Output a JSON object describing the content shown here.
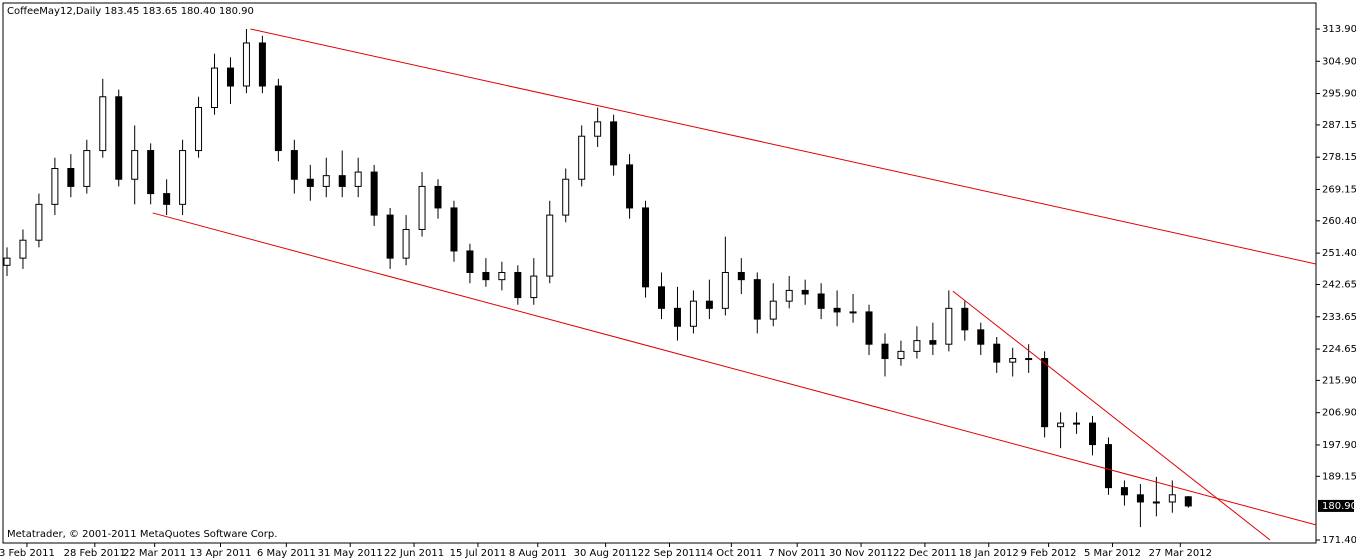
{
  "chart_data": {
    "type": "candlestick",
    "title": "CoffeeMay12,Daily  183.45 183.65 180.40 180.90",
    "footer": "Metatrader, © 2001-2011 MetaQuotes Software Corp.",
    "x": [
      1,
      5,
      9,
      13,
      17,
      21,
      25,
      29,
      33,
      37,
      41,
      45,
      49,
      53,
      57,
      61,
      65,
      69,
      73,
      77,
      81,
      85,
      89,
      93,
      97,
      101,
      105,
      109,
      113,
      117,
      121,
      125,
      129,
      133,
      137,
      141,
      145,
      149,
      153,
      157,
      161,
      165,
      169,
      173,
      177,
      181,
      185,
      189,
      193,
      197,
      201,
      205,
      209,
      213,
      217,
      221,
      225,
      229,
      233,
      237,
      241,
      245,
      249,
      253,
      257,
      261,
      265,
      269,
      273,
      277,
      281,
      285,
      289,
      293,
      297
    ],
    "open": [
      248,
      250,
      255,
      265,
      275,
      270,
      280,
      295,
      272,
      280,
      268,
      265,
      280,
      292,
      303,
      298,
      310,
      298,
      280,
      272,
      270,
      273,
      270,
      274,
      262,
      250,
      258,
      270,
      264,
      252,
      246,
      244,
      246,
      239,
      245,
      262,
      272,
      284,
      288,
      276,
      264,
      242,
      236,
      231,
      238,
      236,
      246,
      244,
      233,
      238,
      241,
      240,
      236,
      235,
      235,
      226,
      222,
      224,
      227,
      226,
      236,
      230,
      226,
      221,
      222,
      222,
      203,
      204,
      204,
      198,
      186,
      184,
      182,
      182,
      183.45
    ],
    "high": [
      253,
      258,
      268,
      278,
      279,
      283,
      300,
      297,
      287,
      282,
      272,
      283,
      295,
      307,
      306,
      313.9,
      312,
      300,
      283,
      276,
      278,
      280,
      278,
      276,
      264,
      262,
      274,
      272,
      266,
      254,
      250,
      249,
      248,
      250,
      266,
      275,
      287,
      292,
      290,
      279,
      266,
      246,
      242,
      241,
      244,
      256,
      250,
      246,
      243,
      245,
      244,
      243,
      241,
      240,
      237,
      229,
      227,
      231,
      232,
      241,
      238,
      232,
      228,
      225,
      226,
      224,
      207,
      207,
      206,
      200,
      188,
      187,
      189,
      188,
      183.65
    ],
    "low": [
      245,
      247,
      253,
      262,
      267,
      268,
      278,
      270,
      265,
      265,
      262,
      262,
      278,
      290,
      293,
      296,
      296,
      277,
      268,
      266,
      267,
      267,
      267,
      259,
      247,
      248,
      256,
      261,
      249,
      243,
      242,
      241,
      237,
      237,
      243,
      260,
      270,
      281,
      273,
      261,
      239,
      233,
      227,
      229,
      233,
      234,
      240,
      229,
      231,
      236,
      237,
      233,
      231,
      232,
      223,
      217,
      220,
      222,
      223,
      224,
      227,
      223,
      218,
      217,
      218,
      200,
      197,
      201,
      195,
      184,
      181,
      175,
      178,
      179,
      180.4
    ],
    "close": [
      250,
      255,
      265,
      275,
      270,
      280,
      295,
      272,
      280,
      268,
      265,
      280,
      292,
      303,
      298,
      310,
      298,
      280,
      272,
      270,
      273,
      270,
      274,
      262,
      250,
      258,
      270,
      264,
      252,
      246,
      244,
      246,
      239,
      245,
      262,
      272,
      284,
      288,
      276,
      264,
      242,
      236,
      231,
      238,
      236,
      246,
      244,
      233,
      238,
      241,
      240,
      236,
      235,
      235,
      226,
      222,
      224,
      227,
      226,
      236,
      230,
      226,
      221,
      222,
      222,
      203,
      204,
      204,
      198,
      186,
      184,
      182,
      182,
      184,
      180.9
    ],
    "up_color": "#ffffff",
    "down_color": "#000000",
    "trendlines": [
      {
        "x": [
          62,
          329
        ],
        "y": [
          313.9,
          248.35
        ],
        "color": "#e00000"
      },
      {
        "x": [
          37.5,
          329
        ],
        "y": [
          262.6,
          175.6
        ],
        "color": "#e00000"
      },
      {
        "x": [
          238,
          317.5
        ],
        "y": [
          240.8,
          171.4
        ],
        "color": "#e00000"
      }
    ],
    "last_price": {
      "value": 180.9,
      "label": "180.90"
    },
    "xlim": [
      0,
      329
    ],
    "ylim": [
      170.56,
      321.15
    ],
    "xticks": [
      {
        "value": 6,
        "label": "3 Feb 2011"
      },
      {
        "value": 23,
        "label": "28 Feb 2011"
      },
      {
        "value": 38,
        "label": "22 Mar 2011"
      },
      {
        "value": 54.5,
        "label": "13 Apr 2011"
      },
      {
        "value": 71,
        "label": "6 May 2011"
      },
      {
        "value": 87,
        "label": "31 May 2011"
      },
      {
        "value": 103,
        "label": "22 Jun 2011"
      },
      {
        "value": 119,
        "label": "15 Jul 2011"
      },
      {
        "value": 134,
        "label": "8 Aug 2011"
      },
      {
        "value": 151,
        "label": "30 Aug 2011"
      },
      {
        "value": 167,
        "label": "22 Sep 2011"
      },
      {
        "value": 182.5,
        "label": "14 Oct 2011"
      },
      {
        "value": 199,
        "label": "7 Nov 2011"
      },
      {
        "value": 215,
        "label": "30 Nov 2011"
      },
      {
        "value": 231,
        "label": "22 Dec 2011"
      },
      {
        "value": 247,
        "label": "18 Jan 2012"
      },
      {
        "value": 262,
        "label": "9 Feb 2012"
      },
      {
        "value": 278,
        "label": "5 Mar 2012"
      },
      {
        "value": 295,
        "label": "27 Mar 2012"
      }
    ],
    "yticks": [
      {
        "value": 313.9,
        "label": "313.90"
      },
      {
        "value": 304.9,
        "label": "304.90"
      },
      {
        "value": 295.9,
        "label": "295.90"
      },
      {
        "value": 287.15,
        "label": "287.15"
      },
      {
        "value": 278.15,
        "label": "278.15"
      },
      {
        "value": 269.15,
        "label": "269.15"
      },
      {
        "value": 260.4,
        "label": "260.40"
      },
      {
        "value": 251.4,
        "label": "251.40"
      },
      {
        "value": 242.65,
        "label": "242.65"
      },
      {
        "value": 233.65,
        "label": "233.65"
      },
      {
        "value": 224.65,
        "label": "224.65"
      },
      {
        "value": 215.9,
        "label": "215.90"
      },
      {
        "value": 206.9,
        "label": "206.90"
      },
      {
        "value": 197.9,
        "label": "197.90"
      },
      {
        "value": 189.15,
        "label": "189.15"
      },
      {
        "value": 171.4,
        "label": "171.40"
      }
    ]
  }
}
